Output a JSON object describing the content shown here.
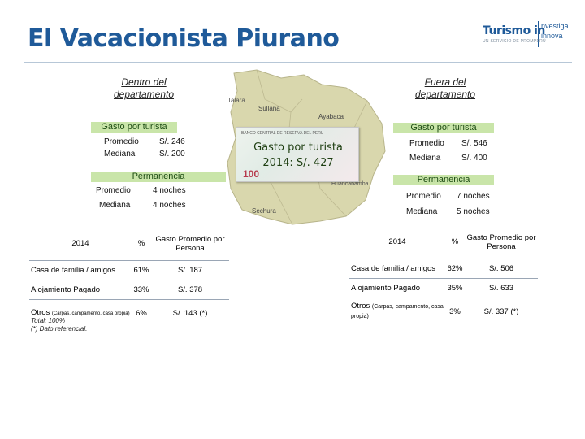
{
  "title": "El Vacacionista Piurano",
  "logo": {
    "brand": "Turismo in",
    "side_line1": "nvestiga",
    "side_line2": "innova",
    "sub": "UN SERVICIO DE PROMPERÚ"
  },
  "left": {
    "header": "Dentro del departamento",
    "gasto_title": "Gasto por turista",
    "gasto": [
      {
        "label": "Promedio",
        "value": "S/. 246"
      },
      {
        "label": "Mediana",
        "value": "S/. 200"
      }
    ],
    "perm_title": "Permanencia",
    "perm": [
      {
        "label": "Promedio",
        "value": "4 noches"
      },
      {
        "label": "Mediana",
        "value": "4 noches"
      }
    ],
    "table": {
      "h1": "2014",
      "h2": "%",
      "h3": "Gasto Promedio por Persona",
      "rows": [
        {
          "label": "Casa de familia / amigos",
          "pct": "61%",
          "value": "S/. 187"
        },
        {
          "label": "Alojamiento Pagado",
          "pct": "33%",
          "value": "S/. 378"
        },
        {
          "label": "Otros",
          "label_small": "(Carpas, campamento, casa propia)",
          "pct": "6%",
          "value": "S/. 143 (*)"
        }
      ]
    },
    "foot1": "Total: 100%",
    "foot2": "(*) Dato referencial."
  },
  "right": {
    "header": "Fuera del departamento",
    "gasto_title": "Gasto por turista",
    "gasto": [
      {
        "label": "Promedio",
        "value": "S/. 546"
      },
      {
        "label": "Mediana",
        "value": "S/. 400"
      }
    ],
    "perm_title": "Permanencia",
    "perm": [
      {
        "label": "Promedio",
        "value": "7 noches"
      },
      {
        "label": "Mediana",
        "value": "5 noches"
      }
    ],
    "table": {
      "h1": "2014",
      "h2": "%",
      "h3": "Gasto Promedio por Persona",
      "rows": [
        {
          "label": "Casa de familia / amigos",
          "pct": "62%",
          "value": "S/. 506"
        },
        {
          "label": "Alojamiento Pagado",
          "pct": "35%",
          "value": "S/. 633"
        },
        {
          "label": "Otros",
          "label_small": "(Carpas, campamento, casa propia)",
          "pct": "3%",
          "value": "S/. 337 (*)"
        }
      ]
    }
  },
  "map": {
    "labels": [
      "Talara",
      "Sullana",
      "Ayabaca",
      "Huancabamba",
      "Sechura"
    ],
    "note_line1": "Gasto por turista",
    "note_line2": "2014: S/. 427",
    "note_tiny": "BANCO CENTRAL DE RESERVA DEL PERU",
    "note_denom": "100"
  },
  "colors": {
    "title": "#1f5a99",
    "green_bar": "#c9e5a9",
    "map_fill": "#d9d7ad"
  }
}
